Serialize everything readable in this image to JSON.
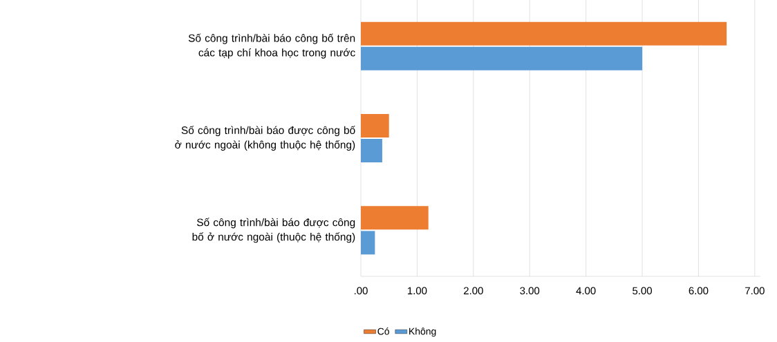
{
  "chart_data": {
    "type": "bar",
    "orientation": "horizontal",
    "categories": [
      "Số công trình/bài báo công bố trên các tạp chí khoa học trong nước",
      "Số công trình/bài báo được công bố ở nước ngoài (không thuộc hệ thống)",
      "Số công trình/bài báo được công bố ở nước ngoài (thuộc hệ thống)"
    ],
    "series": [
      {
        "name": "Có",
        "color": "#ed7d31",
        "values": [
          6.5,
          0.5,
          1.2
        ]
      },
      {
        "name": "Không",
        "color": "#5b9bd5",
        "values": [
          5.0,
          0.38,
          0.25
        ]
      }
    ],
    "xlim": [
      0,
      7.1
    ],
    "xticks": [
      {
        "value": 0,
        "label": ".00"
      },
      {
        "value": 1,
        "label": "1.00"
      },
      {
        "value": 2,
        "label": "2.00"
      },
      {
        "value": 3,
        "label": "3.00"
      },
      {
        "value": 4,
        "label": "4.00"
      },
      {
        "value": 5,
        "label": "5.00"
      },
      {
        "value": 6,
        "label": "6.00"
      },
      {
        "value": 7,
        "label": "7.00"
      }
    ],
    "grid": "x",
    "legend": "bottom"
  }
}
